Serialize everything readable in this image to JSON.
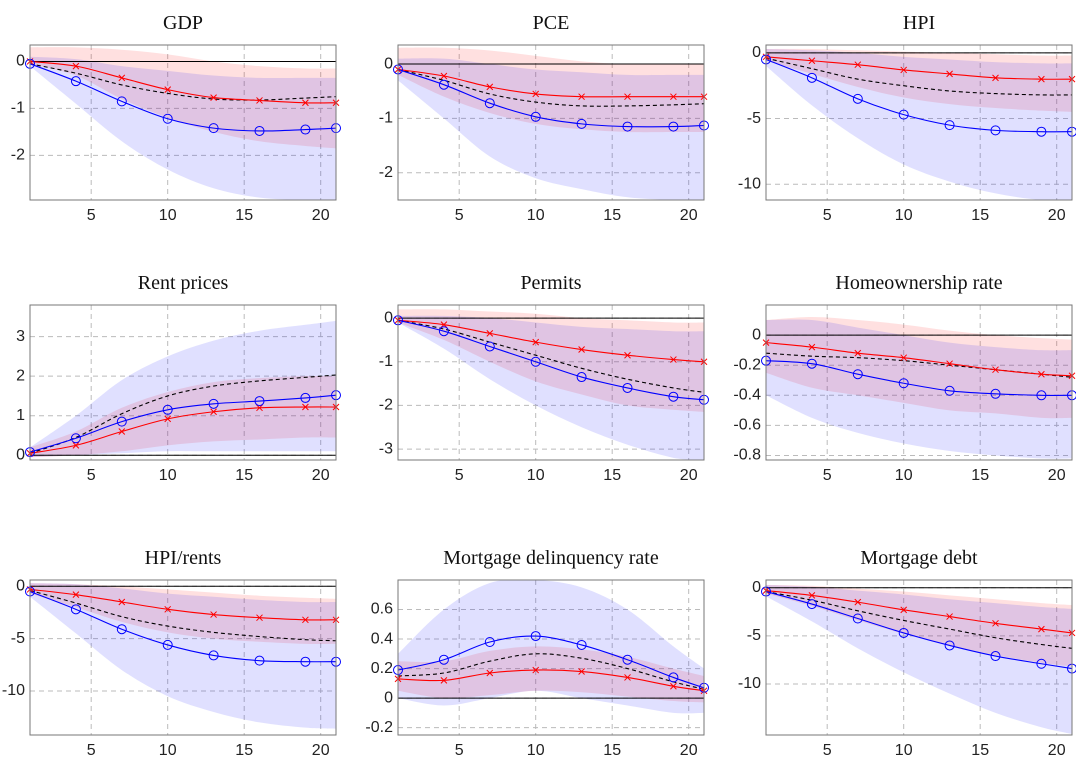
{
  "chart_data": [
    {
      "type": "line",
      "title": "GDP",
      "x": [
        1,
        4,
        7,
        10,
        13,
        16,
        19,
        21
      ],
      "xlim": [
        1,
        21
      ],
      "xticks": [
        5,
        10,
        15,
        20
      ],
      "ylim": [
        -2.95,
        0.35
      ],
      "yticks": [
        -2,
        -1,
        0
      ],
      "grid": true,
      "bands": [
        {
          "color": "#ff0000",
          "lower": [
            -0.05,
            -0.3,
            -0.8,
            -1.2,
            -1.5,
            -1.7,
            -1.8,
            -1.85
          ],
          "upper": [
            0.3,
            0.3,
            0.25,
            0.15,
            0.0,
            -0.1,
            -0.15,
            -0.15
          ]
        },
        {
          "color": "#0000ff",
          "lower": [
            -0.1,
            -0.9,
            -1.7,
            -2.3,
            -2.7,
            -2.9,
            -2.95,
            -2.95
          ],
          "upper": [
            0.1,
            0.05,
            -0.1,
            -0.2,
            -0.3,
            -0.35,
            -0.35,
            -0.35
          ]
        }
      ],
      "series": [
        {
          "color": "#000000",
          "style": "dashed",
          "marker": "none",
          "values": [
            -0.05,
            -0.25,
            -0.5,
            -0.68,
            -0.8,
            -0.82,
            -0.78,
            -0.75
          ]
        },
        {
          "color": "#ff0000",
          "style": "solid",
          "marker": "x",
          "values": [
            0,
            -0.1,
            -0.35,
            -0.6,
            -0.77,
            -0.83,
            -0.88,
            -0.88
          ]
        },
        {
          "color": "#0000ff",
          "style": "solid",
          "marker": "o",
          "values": [
            -0.05,
            -0.42,
            -0.85,
            -1.22,
            -1.42,
            -1.48,
            -1.45,
            -1.42
          ]
        }
      ]
    },
    {
      "type": "line",
      "title": "PCE",
      "x": [
        1,
        4,
        7,
        10,
        13,
        16,
        19,
        21
      ],
      "xlim": [
        1,
        21
      ],
      "xticks": [
        5,
        10,
        15,
        20
      ],
      "ylim": [
        -2.5,
        0.35
      ],
      "yticks": [
        -2,
        -1,
        0
      ],
      "grid": true,
      "bands": [
        {
          "color": "#ff0000",
          "lower": [
            -0.2,
            -0.6,
            -0.9,
            -1.1,
            -1.2,
            -1.25,
            -1.25,
            -1.25
          ],
          "upper": [
            0.3,
            0.3,
            0.25,
            0.15,
            0.05,
            0,
            0,
            0
          ]
        },
        {
          "color": "#0000ff",
          "lower": [
            -0.3,
            -1.0,
            -1.7,
            -2.1,
            -2.3,
            -2.45,
            -2.5,
            -2.5
          ],
          "upper": [
            0.1,
            0.1,
            0.0,
            -0.1,
            -0.15,
            -0.2,
            -0.2,
            -0.2
          ]
        }
      ],
      "series": [
        {
          "color": "#000000",
          "style": "dashed",
          "marker": "none",
          "values": [
            -0.1,
            -0.3,
            -0.55,
            -0.7,
            -0.77,
            -0.77,
            -0.75,
            -0.73
          ]
        },
        {
          "color": "#ff0000",
          "style": "solid",
          "marker": "x",
          "values": [
            -0.1,
            -0.22,
            -0.42,
            -0.55,
            -0.6,
            -0.6,
            -0.6,
            -0.6
          ]
        },
        {
          "color": "#0000ff",
          "style": "solid",
          "marker": "o",
          "values": [
            -0.1,
            -0.38,
            -0.72,
            -0.97,
            -1.1,
            -1.15,
            -1.15,
            -1.13
          ]
        }
      ]
    },
    {
      "type": "line",
      "title": "HPI",
      "x": [
        1,
        4,
        7,
        10,
        13,
        16,
        19,
        21
      ],
      "xlim": [
        1,
        21
      ],
      "xticks": [
        5,
        10,
        15,
        20
      ],
      "ylim": [
        -11.2,
        0.6
      ],
      "yticks": [
        -10,
        -5,
        0
      ],
      "grid": true,
      "bands": [
        {
          "color": "#ff0000",
          "lower": [
            -0.6,
            -1.6,
            -2.6,
            -3.4,
            -3.9,
            -4.2,
            -4.4,
            -4.5
          ],
          "upper": [
            0.3,
            0.3,
            0.2,
            0.1,
            0,
            -0.1,
            -0.2,
            -0.2
          ]
        },
        {
          "color": "#0000ff",
          "lower": [
            -1,
            -4,
            -6.5,
            -8.5,
            -9.8,
            -10.7,
            -11.2,
            -11.2
          ],
          "upper": [
            0.3,
            0.2,
            0,
            -0.3,
            -0.5,
            -0.7,
            -0.8,
            -0.8
          ]
        }
      ],
      "series": [
        {
          "color": "#000000",
          "style": "dashed",
          "marker": "none",
          "values": [
            -0.4,
            -1.2,
            -2,
            -2.5,
            -2.9,
            -3.1,
            -3.2,
            -3.2
          ]
        },
        {
          "color": "#ff0000",
          "style": "solid",
          "marker": "x",
          "values": [
            -0.3,
            -0.6,
            -0.9,
            -1.3,
            -1.6,
            -1.9,
            -2,
            -2
          ]
        },
        {
          "color": "#0000ff",
          "style": "solid",
          "marker": "o",
          "values": [
            -0.5,
            -1.9,
            -3.5,
            -4.7,
            -5.5,
            -5.9,
            -6,
            -6
          ]
        }
      ]
    },
    {
      "type": "line",
      "title": "Rent prices",
      "x": [
        1,
        4,
        7,
        10,
        13,
        16,
        19,
        21
      ],
      "xlim": [
        1,
        21
      ],
      "xticks": [
        5,
        10,
        15,
        20
      ],
      "ylim": [
        -0.12,
        3.8
      ],
      "yticks": [
        0,
        1,
        2,
        3
      ],
      "grid": true,
      "bands": [
        {
          "color": "#ff0000",
          "lower": [
            -0.05,
            0,
            0.1,
            0.25,
            0.35,
            0.4,
            0.45,
            0.45
          ],
          "upper": [
            0.2,
            0.6,
            1.2,
            1.6,
            1.85,
            1.95,
            2,
            2
          ]
        },
        {
          "color": "#0000ff",
          "lower": [
            -0.05,
            0,
            0.05,
            0.1,
            0.1,
            0.1,
            0.1,
            0.1
          ],
          "upper": [
            0.2,
            1.0,
            1.9,
            2.5,
            2.9,
            3.15,
            3.3,
            3.4
          ]
        }
      ],
      "series": [
        {
          "color": "#000000",
          "style": "dashed",
          "marker": "none",
          "values": [
            0.05,
            0.45,
            1.05,
            1.5,
            1.75,
            1.88,
            1.97,
            2.03
          ]
        },
        {
          "color": "#ff0000",
          "style": "solid",
          "marker": "x",
          "values": [
            0.05,
            0.25,
            0.6,
            0.92,
            1.1,
            1.2,
            1.22,
            1.22
          ]
        },
        {
          "color": "#0000ff",
          "style": "solid",
          "marker": "o",
          "values": [
            0.08,
            0.43,
            0.85,
            1.15,
            1.3,
            1.37,
            1.45,
            1.52
          ]
        }
      ]
    },
    {
      "type": "line",
      "title": "Permits",
      "x": [
        1,
        4,
        7,
        10,
        13,
        16,
        19,
        21
      ],
      "xlim": [
        1,
        21
      ],
      "xticks": [
        5,
        10,
        15,
        20
      ],
      "ylim": [
        -3.25,
        0.3
      ],
      "yticks": [
        -3,
        -2,
        -1,
        0
      ],
      "grid": true,
      "bands": [
        {
          "color": "#ff0000",
          "lower": [
            -0.1,
            -0.5,
            -1.0,
            -1.45,
            -1.75,
            -2,
            -2.1,
            -2.15
          ],
          "upper": [
            0.2,
            0.2,
            0.15,
            0.1,
            0,
            -0.05,
            -0.1,
            -0.1
          ]
        },
        {
          "color": "#0000ff",
          "lower": [
            -0.1,
            -0.7,
            -1.4,
            -2,
            -2.5,
            -2.9,
            -3.2,
            -3.25
          ],
          "upper": [
            0.05,
            0.05,
            0,
            -0.1,
            -0.2,
            -0.25,
            -0.3,
            -0.3
          ]
        }
      ],
      "series": [
        {
          "color": "#000000",
          "style": "dashed",
          "marker": "none",
          "values": [
            -0.05,
            -0.25,
            -0.55,
            -0.85,
            -1.15,
            -1.4,
            -1.6,
            -1.7
          ]
        },
        {
          "color": "#ff0000",
          "style": "solid",
          "marker": "x",
          "values": [
            -0.05,
            -0.15,
            -0.35,
            -0.55,
            -0.72,
            -0.85,
            -0.95,
            -1
          ]
        },
        {
          "color": "#0000ff",
          "style": "solid",
          "marker": "o",
          "values": [
            -0.05,
            -0.3,
            -0.65,
            -1.0,
            -1.35,
            -1.6,
            -1.8,
            -1.87
          ]
        }
      ]
    },
    {
      "type": "line",
      "title": "Homeownership rate",
      "x": [
        1,
        4,
        7,
        10,
        13,
        16,
        19,
        21
      ],
      "xlim": [
        1,
        21
      ],
      "xticks": [
        5,
        10,
        15,
        20
      ],
      "ylim": [
        -0.83,
        0.2
      ],
      "yticks": [
        -0.8,
        -0.6,
        -0.4,
        -0.2,
        0
      ],
      "grid": true,
      "bands": [
        {
          "color": "#ff0000",
          "lower": [
            -0.25,
            -0.35,
            -0.4,
            -0.45,
            -0.5,
            -0.52,
            -0.55,
            -0.55
          ],
          "upper": [
            0.1,
            0.12,
            0.1,
            0.07,
            0.03,
            0,
            -0.02,
            -0.03
          ]
        },
        {
          "color": "#0000ff",
          "lower": [
            -0.4,
            -0.55,
            -0.65,
            -0.72,
            -0.77,
            -0.8,
            -0.82,
            -0.82
          ],
          "upper": [
            0.1,
            0.1,
            0.05,
            0,
            -0.05,
            -0.08,
            -0.1,
            -0.1
          ]
        }
      ],
      "series": [
        {
          "color": "#000000",
          "style": "dashed",
          "marker": "none",
          "values": [
            -0.12,
            -0.14,
            -0.15,
            -0.17,
            -0.2,
            -0.23,
            -0.26,
            -0.28
          ]
        },
        {
          "color": "#ff0000",
          "style": "solid",
          "marker": "x",
          "values": [
            -0.05,
            -0.08,
            -0.12,
            -0.15,
            -0.19,
            -0.23,
            -0.26,
            -0.27
          ]
        },
        {
          "color": "#0000ff",
          "style": "solid",
          "marker": "o",
          "values": [
            -0.17,
            -0.19,
            -0.26,
            -0.32,
            -0.37,
            -0.39,
            -0.4,
            -0.4
          ]
        }
      ]
    },
    {
      "type": "line",
      "title": "HPI/rents",
      "x": [
        1,
        4,
        7,
        10,
        13,
        16,
        19,
        21
      ],
      "xlim": [
        1,
        21
      ],
      "xticks": [
        5,
        10,
        15,
        20
      ],
      "ylim": [
        -14.2,
        0.6
      ],
      "yticks": [
        -10,
        -5,
        0
      ],
      "grid": true,
      "bands": [
        {
          "color": "#ff0000",
          "lower": [
            -0.7,
            -2,
            -3.4,
            -4.4,
            -5,
            -5.3,
            -5.5,
            -5.5
          ],
          "upper": [
            0.3,
            0.2,
            0,
            -0.3,
            -0.6,
            -0.9,
            -1.1,
            -1.2
          ]
        },
        {
          "color": "#0000ff",
          "lower": [
            -1,
            -4.5,
            -8,
            -10.5,
            -12,
            -13,
            -13.5,
            -13.6
          ],
          "upper": [
            0.3,
            0.2,
            -0.2,
            -0.7,
            -1,
            -1.3,
            -1.5,
            -1.5
          ]
        }
      ],
      "series": [
        {
          "color": "#000000",
          "style": "dashed",
          "marker": "none",
          "values": [
            -0.4,
            -1.6,
            -2.9,
            -3.8,
            -4.4,
            -4.8,
            -5.1,
            -5.2
          ]
        },
        {
          "color": "#ff0000",
          "style": "solid",
          "marker": "x",
          "values": [
            -0.3,
            -0.8,
            -1.5,
            -2.2,
            -2.7,
            -3,
            -3.2,
            -3.2
          ]
        },
        {
          "color": "#0000ff",
          "style": "solid",
          "marker": "o",
          "values": [
            -0.5,
            -2.2,
            -4.1,
            -5.6,
            -6.6,
            -7.1,
            -7.2,
            -7.2
          ]
        }
      ]
    },
    {
      "type": "line",
      "title": "Mortgage delinquency rate",
      "x": [
        1,
        4,
        7,
        10,
        13,
        16,
        19,
        21
      ],
      "xlim": [
        1,
        21
      ],
      "xticks": [
        5,
        10,
        15,
        20
      ],
      "ylim": [
        -0.25,
        0.8
      ],
      "yticks": [
        -0.2,
        0,
        0.2,
        0.4,
        0.6
      ],
      "grid": true,
      "bands": [
        {
          "color": "#ff0000",
          "lower": [
            0.05,
            0.0,
            0.02,
            0.05,
            0.04,
            0.01,
            -0.02,
            -0.03
          ],
          "upper": [
            0.25,
            0.25,
            0.32,
            0.35,
            0.33,
            0.28,
            0.2,
            0.15
          ]
        },
        {
          "color": "#0000ff",
          "lower": [
            0.0,
            -0.05,
            0.0,
            0.05,
            0.0,
            -0.05,
            -0.1,
            -0.1
          ],
          "upper": [
            0.3,
            0.6,
            0.78,
            0.8,
            0.75,
            0.6,
            0.35,
            0.2
          ]
        }
      ],
      "series": [
        {
          "color": "#000000",
          "style": "dashed",
          "marker": "none",
          "values": [
            0.15,
            0.17,
            0.25,
            0.3,
            0.27,
            0.2,
            0.11,
            0.06
          ]
        },
        {
          "color": "#ff0000",
          "style": "solid",
          "marker": "x",
          "values": [
            0.13,
            0.12,
            0.17,
            0.19,
            0.18,
            0.14,
            0.08,
            0.05
          ]
        },
        {
          "color": "#0000ff",
          "style": "solid",
          "marker": "o",
          "values": [
            0.19,
            0.26,
            0.38,
            0.42,
            0.36,
            0.26,
            0.14,
            0.07
          ]
        }
      ]
    },
    {
      "type": "line",
      "title": "Mortgage debt",
      "x": [
        1,
        4,
        7,
        10,
        13,
        16,
        19,
        21
      ],
      "xlim": [
        1,
        21
      ],
      "xticks": [
        5,
        10,
        15,
        20
      ],
      "ylim": [
        -15.3,
        0.8
      ],
      "yticks": [
        -10,
        -5,
        0
      ],
      "grid": true,
      "bands": [
        {
          "color": "#ff0000",
          "lower": [
            -0.6,
            -1.9,
            -3.4,
            -4.8,
            -6,
            -7,
            -7.8,
            -8.2
          ],
          "upper": [
            0.3,
            0.2,
            -0.1,
            -0.4,
            -0.8,
            -1.2,
            -1.6,
            -1.8
          ]
        },
        {
          "color": "#0000ff",
          "lower": [
            -0.9,
            -3.5,
            -6.3,
            -8.8,
            -11,
            -13,
            -14.5,
            -15.2
          ],
          "upper": [
            0.3,
            0.1,
            -0.3,
            -0.7,
            -1.2,
            -1.6,
            -2,
            -2.2
          ]
        }
      ],
      "series": [
        {
          "color": "#000000",
          "style": "dashed",
          "marker": "none",
          "values": [
            -0.4,
            -1.3,
            -2.4,
            -3.4,
            -4.3,
            -5.2,
            -5.9,
            -6.3
          ]
        },
        {
          "color": "#ff0000",
          "style": "solid",
          "marker": "x",
          "values": [
            -0.3,
            -0.8,
            -1.5,
            -2.3,
            -3,
            -3.7,
            -4.3,
            -4.7
          ]
        },
        {
          "color": "#0000ff",
          "style": "solid",
          "marker": "o",
          "values": [
            -0.4,
            -1.7,
            -3.2,
            -4.7,
            -6,
            -7.1,
            -7.9,
            -8.4
          ]
        }
      ]
    }
  ]
}
